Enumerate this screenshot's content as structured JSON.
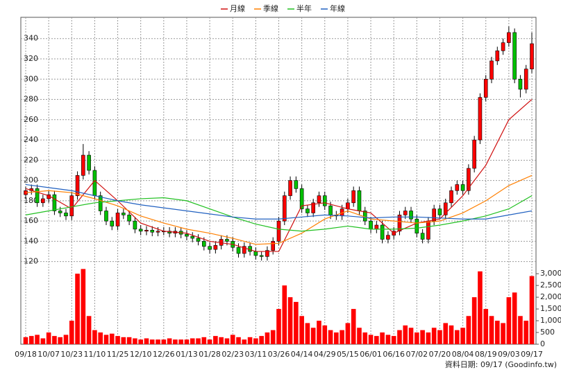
{
  "chart_data": {
    "type": "candlestick",
    "categories": [
      "09/18",
      null,
      null,
      null,
      "10/07",
      null,
      null,
      null,
      "10/23",
      null,
      null,
      null,
      "11/10",
      null,
      null,
      null,
      "11/25",
      null,
      null,
      null,
      "12/10",
      null,
      null,
      null,
      "12/26",
      null,
      null,
      null,
      "01/13",
      null,
      null,
      null,
      "01/28",
      null,
      null,
      null,
      "02/23",
      null,
      null,
      null,
      "03/11",
      null,
      null,
      null,
      "03/26",
      null,
      null,
      null,
      "04/14",
      null,
      null,
      null,
      "04/29",
      null,
      null,
      null,
      "05/15",
      null,
      null,
      null,
      "06/01",
      null,
      null,
      null,
      "06/16",
      null,
      null,
      null,
      "07/02",
      null,
      null,
      null,
      "07/20",
      null,
      null,
      null,
      "08/04",
      null,
      null,
      null,
      "08/19",
      null,
      null,
      null,
      "09/03",
      null,
      null,
      null,
      "09/17"
    ],
    "open": [
      186,
      190,
      192,
      178,
      182,
      186,
      170,
      168,
      165,
      185,
      205,
      225,
      210,
      185,
      170,
      160,
      155,
      168,
      166,
      160,
      152,
      150,
      151,
      149,
      150,
      150,
      148,
      150,
      147,
      145,
      143,
      140,
      135,
      132,
      136,
      142,
      140,
      134,
      128,
      135,
      130,
      126,
      125,
      131,
      140,
      160,
      185,
      200,
      192,
      172,
      168,
      178,
      185,
      175,
      166,
      165,
      172,
      178,
      190,
      170,
      160,
      152,
      156,
      142,
      146,
      150,
      166,
      170,
      162,
      148,
      142,
      160,
      172,
      166,
      178,
      190,
      196,
      190,
      212,
      240,
      282,
      300,
      318,
      328,
      336,
      346,
      300,
      290,
      310
    ],
    "high": [
      194,
      196,
      196,
      186,
      190,
      190,
      174,
      172,
      189,
      209,
      236,
      229,
      214,
      189,
      174,
      164,
      172,
      172,
      170,
      164,
      156,
      155,
      155,
      154,
      154,
      154,
      154,
      154,
      151,
      149,
      147,
      144,
      139,
      140,
      146,
      146,
      144,
      138,
      139,
      139,
      134,
      130,
      135,
      144,
      164,
      189,
      204,
      204,
      196,
      176,
      182,
      189,
      189,
      179,
      170,
      176,
      182,
      194,
      194,
      174,
      164,
      160,
      160,
      150,
      154,
      170,
      174,
      174,
      166,
      152,
      164,
      176,
      176,
      182,
      194,
      200,
      200,
      216,
      244,
      286,
      304,
      322,
      332,
      340,
      352,
      350,
      304,
      314,
      346
    ],
    "low": [
      182,
      186,
      174,
      174,
      178,
      166,
      164,
      161,
      161,
      181,
      201,
      206,
      181,
      166,
      156,
      151,
      151,
      162,
      156,
      148,
      146,
      146,
      145,
      145,
      146,
      144,
      144,
      143,
      141,
      139,
      136,
      131,
      128,
      128,
      132,
      136,
      130,
      124,
      124,
      126,
      122,
      121,
      121,
      127,
      136,
      156,
      181,
      188,
      168,
      164,
      164,
      174,
      171,
      162,
      161,
      161,
      168,
      174,
      166,
      156,
      148,
      148,
      138,
      138,
      142,
      146,
      162,
      158,
      144,
      138,
      138,
      156,
      162,
      162,
      174,
      186,
      186,
      186,
      208,
      236,
      278,
      296,
      314,
      324,
      332,
      296,
      282,
      286,
      306
    ],
    "close": [
      190,
      192,
      178,
      182,
      186,
      170,
      168,
      165,
      185,
      205,
      225,
      210,
      185,
      170,
      160,
      155,
      168,
      166,
      160,
      152,
      150,
      151,
      149,
      150,
      150,
      148,
      150,
      147,
      145,
      143,
      140,
      135,
      132,
      136,
      142,
      140,
      134,
      128,
      135,
      130,
      126,
      125,
      131,
      140,
      160,
      185,
      200,
      192,
      172,
      168,
      178,
      185,
      175,
      166,
      165,
      172,
      178,
      190,
      170,
      160,
      152,
      156,
      142,
      146,
      150,
      166,
      170,
      162,
      148,
      142,
      160,
      172,
      166,
      178,
      190,
      196,
      190,
      212,
      240,
      282,
      300,
      318,
      328,
      336,
      346,
      300,
      290,
      310,
      335
    ],
    "up_color": "#ff0000",
    "down_color": "#00c000",
    "ylim": [
      115,
      361
    ],
    "yticks": [
      120,
      140,
      160,
      180,
      200,
      220,
      240,
      260,
      280,
      300,
      320,
      340
    ],
    "series": [
      {
        "name": "月線",
        "color": "#d01010",
        "x": [
          0,
          4,
          8,
          12,
          16,
          20,
          24,
          28,
          32,
          36,
          40,
          44,
          48,
          52,
          56,
          60,
          64,
          68,
          72,
          76,
          80,
          84,
          88
        ],
        "values": [
          192,
          185,
          172,
          200,
          180,
          158,
          150,
          148,
          140,
          137,
          130,
          130,
          175,
          178,
          172,
          168,
          148,
          158,
          162,
          185,
          215,
          260,
          280
        ]
      },
      {
        "name": "季線",
        "color": "#ff7f00",
        "x": [
          0,
          4,
          8,
          12,
          16,
          20,
          24,
          28,
          32,
          36,
          40,
          44,
          48,
          52,
          56,
          60,
          64,
          68,
          72,
          76,
          80,
          84,
          88
        ],
        "values": [
          188,
          190,
          188,
          182,
          175,
          165,
          158,
          152,
          148,
          143,
          137,
          138,
          148,
          162,
          170,
          162,
          160,
          158,
          160,
          168,
          180,
          195,
          205
        ]
      },
      {
        "name": "半年",
        "color": "#20c020",
        "x": [
          0,
          4,
          8,
          12,
          16,
          20,
          24,
          28,
          32,
          36,
          40,
          44,
          48,
          52,
          56,
          60,
          64,
          68,
          72,
          76,
          80,
          84,
          88
        ],
        "values": [
          166,
          170,
          174,
          178,
          180,
          182,
          183,
          180,
          172,
          164,
          157,
          152,
          150,
          152,
          155,
          152,
          152,
          153,
          156,
          160,
          165,
          172,
          185
        ]
      },
      {
        "name": "年線",
        "color": "#2060c0",
        "x": [
          0,
          4,
          8,
          12,
          16,
          20,
          24,
          28,
          32,
          36,
          40,
          44,
          48,
          52,
          56,
          60,
          64,
          68,
          72,
          76,
          80,
          84,
          88
        ],
        "values": [
          196,
          193,
          190,
          185,
          180,
          176,
          173,
          170,
          167,
          164,
          162,
          162,
          164,
          166,
          165,
          163,
          164,
          164,
          163,
          162,
          162,
          166,
          170
        ]
      }
    ],
    "volume": {
      "color": "#ff0000",
      "y2lim": [
        0,
        3300
      ],
      "y2ticks": [
        0,
        500,
        {
          "value": 1000,
          "label": "1,000"
        },
        {
          "value": 1500,
          "label": "1,500"
        },
        {
          "value": 2000,
          "label": "2,000"
        },
        {
          "value": 2500,
          "label": "2,500"
        },
        {
          "value": 3000,
          "label": "3,000"
        }
      ],
      "values": [
        300,
        350,
        400,
        250,
        500,
        350,
        300,
        400,
        1000,
        3000,
        3200,
        1200,
        600,
        500,
        400,
        450,
        350,
        300,
        300,
        250,
        200,
        250,
        200,
        200,
        200,
        250,
        200,
        200,
        200,
        250,
        250,
        300,
        200,
        350,
        300,
        250,
        400,
        300,
        200,
        300,
        250,
        350,
        500,
        600,
        1500,
        2500,
        2000,
        1800,
        1200,
        900,
        700,
        1000,
        800,
        600,
        500,
        600,
        900,
        1500,
        700,
        500,
        400,
        350,
        500,
        400,
        350,
        600,
        800,
        700,
        500,
        600,
        500,
        700,
        600,
        900,
        800,
        600,
        700,
        1200,
        2000,
        3100,
        1500,
        1200,
        1000,
        900,
        2000,
        2200,
        1200,
        1000,
        2900
      ]
    },
    "grid": true,
    "footer": "資料日期: 09/17 (Goodinfo.tw)"
  }
}
